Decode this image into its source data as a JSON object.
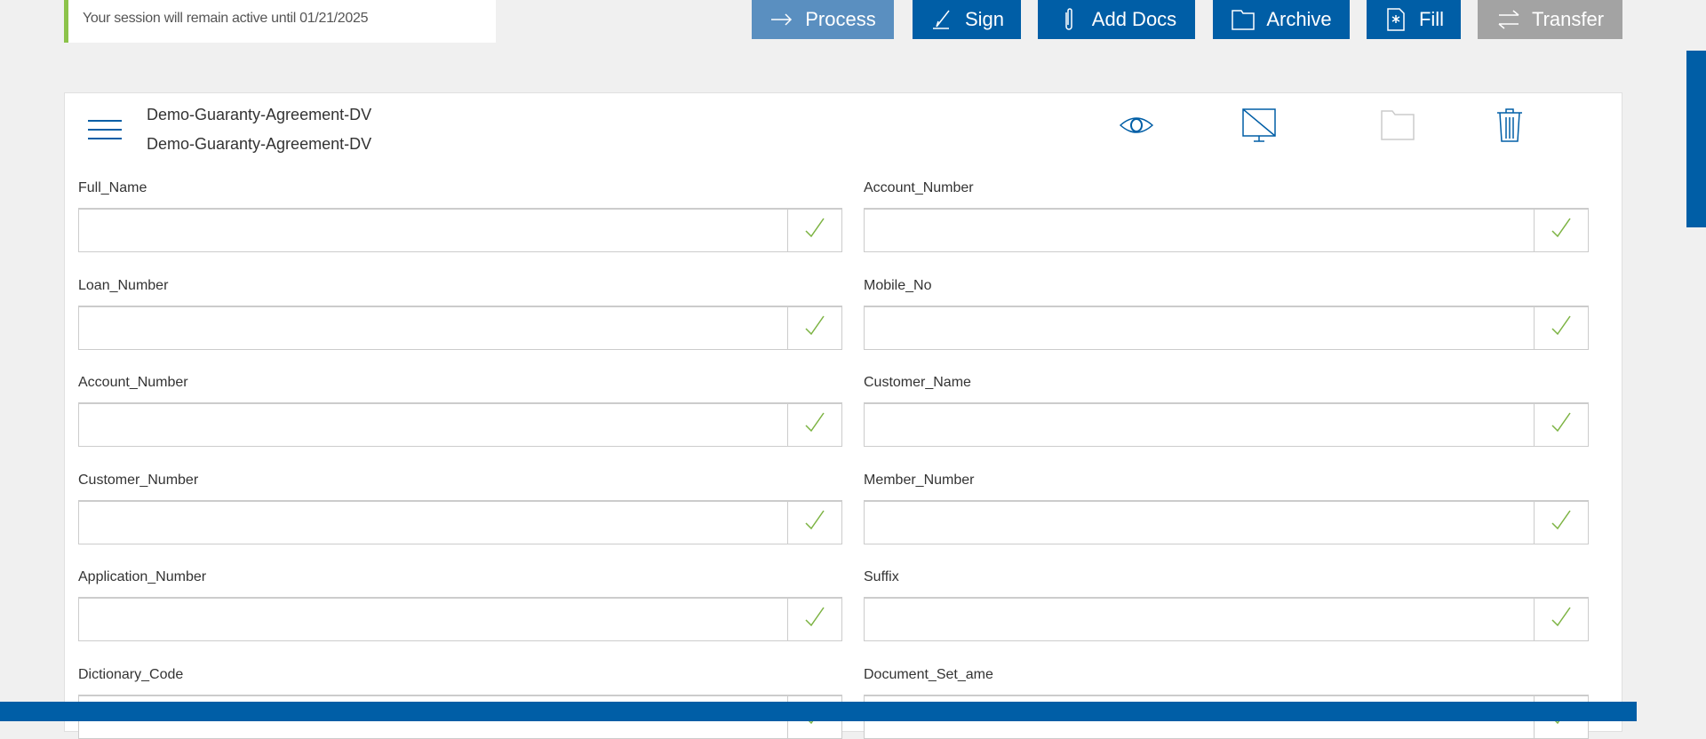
{
  "session": {
    "text": "Your session will remain active until 01/21/2025"
  },
  "toolbar": {
    "process": "Process",
    "sign": "Sign",
    "add_docs": "Add Docs",
    "archive": "Archive",
    "fill": "Fill",
    "transfer": "Transfer"
  },
  "colors": {
    "primary": "#005ea6",
    "process": "#5a8fc0",
    "disabled": "#a3a3a3",
    "accent_green": "#8cc34a"
  },
  "document": {
    "title": "Demo-Guaranty-Agreement-DV",
    "subtitle": "Demo-Guaranty-Agreement-DV"
  },
  "fields": [
    {
      "label": "Full_Name",
      "value": ""
    },
    {
      "label": "Account_Number",
      "value": ""
    },
    {
      "label": "Loan_Number",
      "value": ""
    },
    {
      "label": "Mobile_No",
      "value": ""
    },
    {
      "label": "Account_Number",
      "value": ""
    },
    {
      "label": "Customer_Name",
      "value": ""
    },
    {
      "label": "Customer_Number",
      "value": ""
    },
    {
      "label": "Member_Number",
      "value": ""
    },
    {
      "label": "Application_Number",
      "value": ""
    },
    {
      "label": "Suffix",
      "value": ""
    },
    {
      "label": "Dictionary_Code",
      "value": ""
    },
    {
      "label": "Document_Set_ame",
      "value": ""
    }
  ]
}
